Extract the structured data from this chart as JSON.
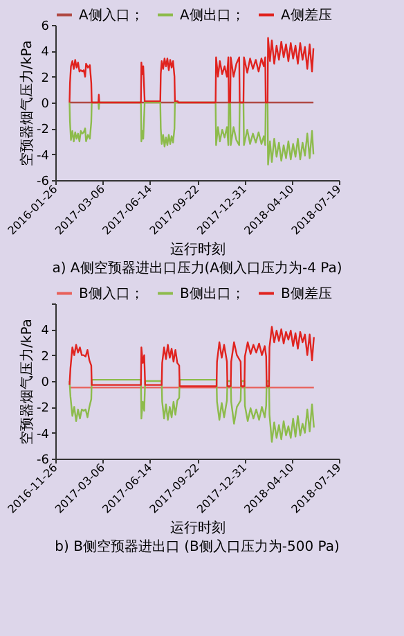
{
  "chart_data": [
    {
      "type": "line",
      "title": "a) A侧空预器进出口压力(A侧入口压力为-4 Pa)",
      "xlabel": "运行时刻",
      "ylabel": "空预器烟气压力/kPa",
      "legend": "top",
      "grid": false,
      "xlim": [
        "2016-11-26",
        "2018-07-19"
      ],
      "xticks": [
        {
          "value": "2016-11-26",
          "label": "2016-01-26"
        },
        {
          "value": "2017-03-06",
          "label": "2017-03-06"
        },
        {
          "value": "2017-06-14",
          "label": "2017-06-14"
        },
        {
          "value": "2017-09-22",
          "label": "2017-09-22"
        },
        {
          "value": "2017-12-31",
          "label": "2017-12-31"
        },
        {
          "value": "2018-04-10",
          "label": "2018-04-10"
        },
        {
          "value": "2018-07-19",
          "label": "2018-07-19"
        }
      ],
      "ylim": [
        -6,
        6
      ],
      "yticks": [
        -6,
        -4,
        -2,
        0,
        2,
        4,
        6
      ],
      "series": [
        {
          "name": "A侧入口；",
          "color": "#b04a45",
          "x": [
            "2016-12-26",
            "2018-05-26"
          ],
          "values": [
            0,
            0
          ]
        },
        {
          "name": "A侧出口；",
          "color": "#8dbb4c",
          "x": [
            "2016-12-26",
            "2016-12-27",
            "2016-12-29",
            "2017-01-01",
            "2017-01-04",
            "2017-01-07",
            "2017-01-10",
            "2017-01-13",
            "2017-01-16",
            "2017-01-19",
            "2017-01-22",
            "2017-01-25",
            "2017-01-28",
            "2017-01-30",
            "2017-02-03",
            "2017-02-07",
            "2017-02-10",
            "2017-02-11",
            "2017-02-25",
            "2017-02-26",
            "2017-02-27",
            "2017-05-26",
            "2017-05-27",
            "2017-05-29",
            "2017-05-31",
            "2017-06-03",
            "2017-07-06",
            "2017-07-07",
            "2017-07-09",
            "2017-07-12",
            "2017-07-15",
            "2017-07-18",
            "2017-07-21",
            "2017-07-24",
            "2017-07-27",
            "2017-07-30",
            "2017-08-02",
            "2017-08-05",
            "2017-08-06",
            "2017-10-31",
            "2017-11-01",
            "2017-11-05",
            "2017-11-09",
            "2017-11-14",
            "2017-11-19",
            "2017-11-24",
            "2017-11-27",
            "2017-11-28",
            "2017-12-01",
            "2017-12-02",
            "2017-12-08",
            "2017-12-14",
            "2017-12-20",
            "2017-12-21",
            "2017-12-29",
            "2017-12-30",
            "2018-01-06",
            "2018-01-12",
            "2018-01-18",
            "2018-01-24",
            "2018-01-30",
            "2018-02-05",
            "2018-02-10",
            "2018-02-13",
            "2018-02-14",
            "2018-02-18",
            "2018-02-19",
            "2018-02-23",
            "2018-02-27",
            "2018-03-04",
            "2018-03-09",
            "2018-03-14",
            "2018-03-19",
            "2018-03-24",
            "2018-03-29",
            "2018-04-03",
            "2018-04-08",
            "2018-04-13",
            "2018-04-18",
            "2018-04-23",
            "2018-04-28",
            "2018-05-03",
            "2018-05-08",
            "2018-05-13",
            "2018-05-18",
            "2018-05-23",
            "2018-05-26"
          ],
          "values": [
            0,
            -1.5,
            -2.9,
            -2.2,
            -3.0,
            -2.3,
            -2.8,
            -2.4,
            -3.0,
            -2.2,
            -2.4,
            -2.3,
            -2.0,
            -3.0,
            -2.5,
            -2.8,
            -1.5,
            0,
            0,
            -0.5,
            0,
            0,
            -3.0,
            -2.2,
            -2.8,
            0,
            0,
            -2.0,
            -3.2,
            -2.5,
            -3.4,
            -2.7,
            -3.3,
            -2.5,
            -3.2,
            -2.6,
            -3.1,
            -2.0,
            0,
            0,
            -3.3,
            -1.9,
            -3.0,
            -2.1,
            -2.7,
            -1.9,
            -3.3,
            0,
            0,
            -3.3,
            -1.9,
            -2.9,
            -3.3,
            0,
            0,
            -3.3,
            -2.1,
            -3.2,
            -2.4,
            -3.1,
            -2.3,
            -3.2,
            -2.6,
            -3.3,
            0,
            0,
            -4.8,
            -3.0,
            -4.6,
            -2.8,
            -4.2,
            -3.1,
            -4.5,
            -3.3,
            -4.3,
            -3.0,
            -4.4,
            -3.2,
            -4.2,
            -2.8,
            -4.4,
            -3.1,
            -4.1,
            -2.4,
            -4.3,
            -2.2,
            -4.0
          ]
        },
        {
          "name": "A侧差压",
          "color": "#e0231f",
          "x": [
            "2016-12-26",
            "2016-12-27",
            "2016-12-29",
            "2017-01-01",
            "2017-01-04",
            "2017-01-07",
            "2017-01-10",
            "2017-01-13",
            "2017-01-16",
            "2017-01-19",
            "2017-01-22",
            "2017-01-25",
            "2017-01-28",
            "2017-01-30",
            "2017-02-03",
            "2017-02-07",
            "2017-02-10",
            "2017-02-11",
            "2017-02-25",
            "2017-02-26",
            "2017-02-27",
            "2017-05-26",
            "2017-05-27",
            "2017-05-29",
            "2017-05-31",
            "2017-06-03",
            "2017-07-06",
            "2017-07-07",
            "2017-07-09",
            "2017-07-12",
            "2017-07-15",
            "2017-07-18",
            "2017-07-21",
            "2017-07-24",
            "2017-07-27",
            "2017-07-30",
            "2017-08-02",
            "2017-08-05",
            "2017-08-06",
            "2017-08-12",
            "2017-08-13",
            "2017-10-31",
            "2017-11-01",
            "2017-11-05",
            "2017-11-09",
            "2017-11-14",
            "2017-11-19",
            "2017-11-24",
            "2017-11-27",
            "2017-11-28",
            "2017-12-01",
            "2017-12-02",
            "2017-12-08",
            "2017-12-14",
            "2017-12-20",
            "2017-12-21",
            "2017-12-29",
            "2017-12-30",
            "2018-01-06",
            "2018-01-12",
            "2018-01-18",
            "2018-01-24",
            "2018-01-30",
            "2018-02-05",
            "2018-02-10",
            "2018-02-13",
            "2018-02-14",
            "2018-02-18",
            "2018-02-19",
            "2018-02-23",
            "2018-02-27",
            "2018-03-04",
            "2018-03-09",
            "2018-03-14",
            "2018-03-19",
            "2018-03-24",
            "2018-03-29",
            "2018-04-03",
            "2018-04-08",
            "2018-04-13",
            "2018-04-18",
            "2018-04-23",
            "2018-04-28",
            "2018-05-03",
            "2018-05-08",
            "2018-05-13",
            "2018-05-18",
            "2018-05-23",
            "2018-05-26"
          ],
          "values": [
            0,
            1.5,
            2.8,
            3.2,
            2.6,
            3.3,
            2.7,
            3.1,
            2.4,
            2.5,
            2.4,
            2.5,
            2.0,
            3.0,
            2.7,
            2.9,
            1.5,
            0,
            0,
            0.6,
            0,
            0,
            3.1,
            2.2,
            2.8,
            0.1,
            0.1,
            2.2,
            3.2,
            2.6,
            3.4,
            2.8,
            3.4,
            2.5,
            3.3,
            2.7,
            3.2,
            2.0,
            0.1,
            0.1,
            0,
            0,
            3.5,
            2.0,
            3.2,
            2.2,
            2.8,
            2.0,
            3.5,
            0,
            0,
            3.5,
            2.0,
            3.0,
            3.5,
            0,
            0,
            3.5,
            2.3,
            3.4,
            2.6,
            3.3,
            2.4,
            3.4,
            2.8,
            3.5,
            0,
            0,
            5.0,
            3.2,
            4.8,
            3.0,
            4.4,
            3.3,
            4.7,
            3.5,
            4.5,
            3.2,
            4.6,
            3.4,
            4.4,
            3.0,
            4.6,
            3.3,
            4.3,
            2.6,
            4.5,
            2.4,
            4.2
          ]
        }
      ]
    },
    {
      "type": "line",
      "title": "b) B侧空预器进出口 (B侧入口压力为-500 Pa)",
      "xlabel": "运行时刻",
      "ylabel": "空预器烟气压力/kPa",
      "legend": "top",
      "grid": false,
      "xlim": [
        "2016-11-26",
        "2018-07-19"
      ],
      "xticks": [
        "2016-11-26",
        "2017-03-06",
        "2017-06-14",
        "2017-09-22",
        "2017-12-31",
        "2018-04-10",
        "2018-07-19"
      ],
      "ylim": [
        -6,
        6
      ],
      "yticks": [
        -6,
        -4,
        -2,
        0,
        2,
        4,
        {
          "value": 6,
          "label": null
        }
      ],
      "series": [
        {
          "name": "B侧入口；",
          "color": "#e8605a",
          "x": [
            "2016-12-26",
            "2018-05-27"
          ],
          "values": [
            -0.5,
            -0.5
          ]
        },
        {
          "name": "B侧出口；",
          "color": "#8dbb4c",
          "x": [
            "2016-12-26",
            "2016-12-28",
            "2017-01-01",
            "2017-01-05",
            "2017-01-09",
            "2017-01-13",
            "2017-01-17",
            "2017-01-21",
            "2017-01-25",
            "2017-01-29",
            "2017-02-02",
            "2017-02-06",
            "2017-02-10",
            "2017-02-11",
            "2017-05-26",
            "2017-05-27",
            "2017-05-30",
            "2017-06-02",
            "2017-06-04",
            "2017-07-09",
            "2017-07-10",
            "2017-07-14",
            "2017-07-18",
            "2017-07-22",
            "2017-07-26",
            "2017-07-30",
            "2017-08-03",
            "2017-08-07",
            "2017-08-11",
            "2017-08-15",
            "2017-08-16",
            "2017-11-02",
            "2017-11-03",
            "2017-11-08",
            "2017-11-13",
            "2017-11-18",
            "2017-11-24",
            "2017-11-25",
            "2017-12-02",
            "2017-12-03",
            "2017-12-09",
            "2017-12-15",
            "2017-12-23",
            "2017-12-24",
            "2017-12-31",
            "2018-01-01",
            "2018-01-07",
            "2018-01-13",
            "2018-01-19",
            "2018-01-25",
            "2018-01-31",
            "2018-02-06",
            "2018-02-12",
            "2018-02-15",
            "2018-02-16",
            "2018-02-21",
            "2018-02-22",
            "2018-02-27",
            "2018-03-04",
            "2018-03-09",
            "2018-03-14",
            "2018-03-19",
            "2018-03-24",
            "2018-03-29",
            "2018-04-03",
            "2018-04-08",
            "2018-04-13",
            "2018-04-18",
            "2018-04-23",
            "2018-04-28",
            "2018-05-03",
            "2018-05-08",
            "2018-05-13",
            "2018-05-18",
            "2018-05-23",
            "2018-05-27"
          ],
          "values": [
            0,
            -1.2,
            -2.7,
            -2.0,
            -3.1,
            -2.2,
            -2.9,
            -2.2,
            -2.3,
            -2.2,
            -2.8,
            -2.0,
            -1.4,
            0.1,
            0.1,
            -2.9,
            -1.6,
            -2.3,
            0,
            0,
            -1.6,
            -2.9,
            -1.8,
            -3.0,
            -2.0,
            -2.8,
            -1.6,
            -2.6,
            -1.5,
            -1.3,
            0.1,
            0.1,
            -1.6,
            -3.0,
            -1.7,
            -2.8,
            -1.5,
            0,
            0,
            -1.6,
            -3.3,
            -2.0,
            -1.5,
            0,
            0,
            -1.9,
            -3.1,
            -2.1,
            -2.9,
            -2.2,
            -3.0,
            -2.0,
            -2.8,
            -1.9,
            0,
            0,
            -2.6,
            -4.7,
            -3.2,
            -4.4,
            -3.4,
            -4.5,
            -3.1,
            -4.2,
            -3.5,
            -4.4,
            -2.9,
            -4.3,
            -2.7,
            -4.2,
            -3.3,
            -4.0,
            -2.2,
            -3.9,
            -1.8,
            -3.6
          ]
        },
        {
          "name": "B侧差压",
          "color": "#e0231f",
          "x": [
            "2016-12-26",
            "2016-12-28",
            "2017-01-01",
            "2017-01-05",
            "2017-01-09",
            "2017-01-13",
            "2017-01-17",
            "2017-01-21",
            "2017-01-25",
            "2017-01-29",
            "2017-02-02",
            "2017-02-06",
            "2017-02-10",
            "2017-02-11",
            "2017-05-26",
            "2017-05-27",
            "2017-05-30",
            "2017-06-02",
            "2017-06-04",
            "2017-07-09",
            "2017-07-10",
            "2017-07-14",
            "2017-07-18",
            "2017-07-22",
            "2017-07-26",
            "2017-07-30",
            "2017-08-03",
            "2017-08-07",
            "2017-08-11",
            "2017-08-15",
            "2017-08-16",
            "2017-11-02",
            "2017-11-03",
            "2017-11-08",
            "2017-11-13",
            "2017-11-18",
            "2017-11-24",
            "2017-11-25",
            "2017-12-02",
            "2017-12-03",
            "2017-12-09",
            "2017-12-15",
            "2017-12-23",
            "2017-12-24",
            "2017-12-31",
            "2018-01-01",
            "2018-01-07",
            "2018-01-13",
            "2018-01-19",
            "2018-01-25",
            "2018-01-31",
            "2018-02-06",
            "2018-02-12",
            "2018-02-15",
            "2018-02-16",
            "2018-02-21",
            "2018-02-22",
            "2018-02-27",
            "2018-03-04",
            "2018-03-09",
            "2018-03-14",
            "2018-03-19",
            "2018-03-24",
            "2018-03-29",
            "2018-04-03",
            "2018-04-08",
            "2018-04-13",
            "2018-04-18",
            "2018-04-23",
            "2018-04-28",
            "2018-05-03",
            "2018-05-08",
            "2018-05-13",
            "2018-05-18",
            "2018-05-23",
            "2018-05-27"
          ],
          "values": [
            -0.3,
            1.0,
            2.6,
            2.0,
            2.8,
            2.2,
            2.6,
            2.0,
            2.0,
            1.9,
            2.4,
            1.6,
            1.2,
            -0.3,
            -0.3,
            2.6,
            1.4,
            2.0,
            -0.3,
            -0.3,
            1.4,
            2.6,
            1.7,
            2.8,
            1.8,
            2.5,
            1.5,
            2.4,
            1.4,
            1.2,
            -0.4,
            -0.4,
            1.5,
            3.0,
            1.8,
            2.8,
            1.5,
            -0.4,
            -0.4,
            1.5,
            3.0,
            2.0,
            1.5,
            -0.4,
            -0.4,
            1.9,
            3.0,
            2.1,
            2.8,
            2.2,
            2.9,
            2.0,
            2.7,
            1.9,
            -0.4,
            -0.4,
            2.6,
            4.2,
            3.0,
            3.9,
            3.1,
            4.0,
            2.9,
            3.8,
            3.2,
            3.9,
            2.7,
            3.7,
            2.5,
            3.8,
            3.0,
            3.6,
            2.0,
            3.6,
            1.6,
            3.4
          ]
        }
      ]
    }
  ]
}
